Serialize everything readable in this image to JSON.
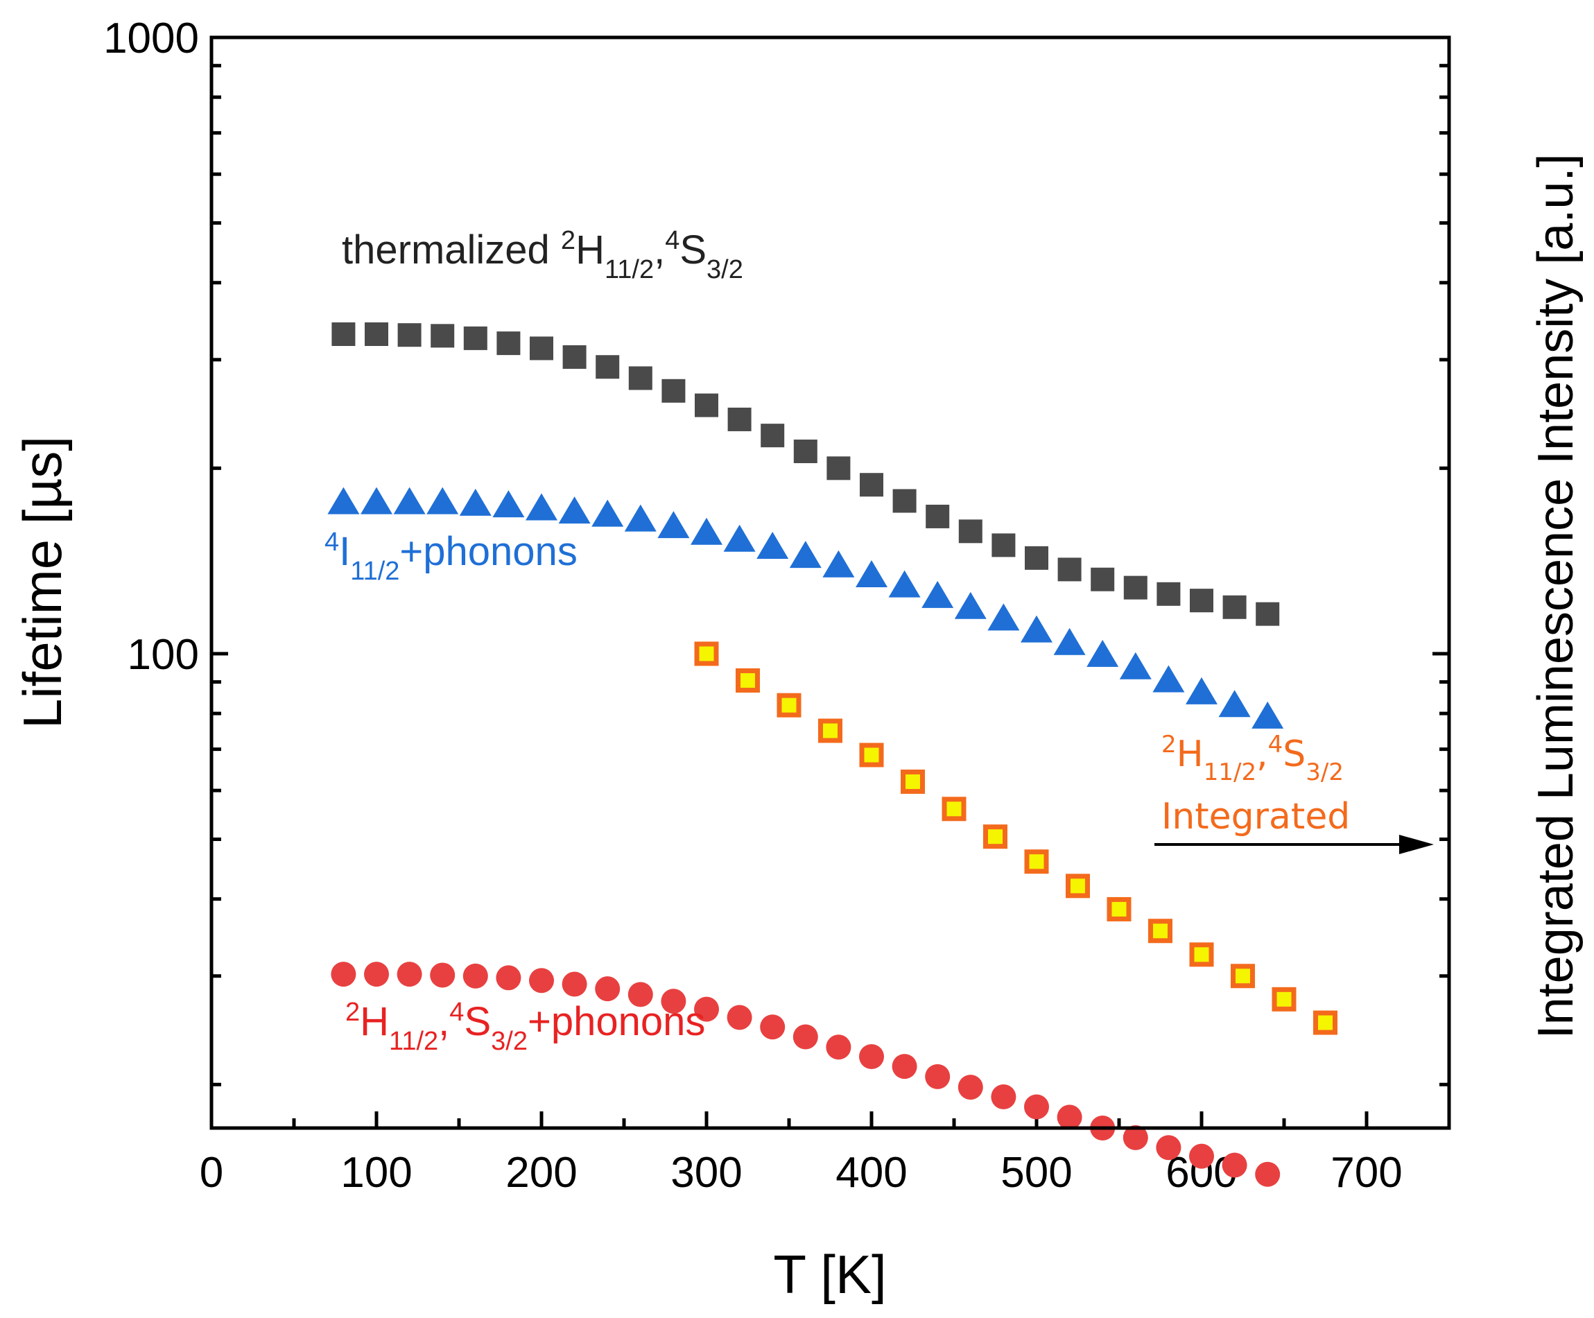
{
  "chart_data": {
    "type": "scatter",
    "xlabel": "T [K]",
    "ylabel_left": "Lifetime [µs]",
    "ylabel_right": "Integrated Luminescence Intensity [a.u.]",
    "xlim": [
      0,
      750
    ],
    "ylim": [
      17,
      1000
    ],
    "yscale": "log",
    "xticks": [
      0,
      100,
      200,
      300,
      400,
      500,
      600,
      700
    ],
    "xtick_labels": [
      "0",
      "100",
      "200",
      "300",
      "400",
      "500",
      "600",
      "700"
    ],
    "yticks": [
      100,
      1000
    ],
    "ytick_labels": [
      "100",
      "1000"
    ],
    "series": [
      {
        "name": "thermalized 2H11/2,4S3/2",
        "marker": "square",
        "color": "#4a4a4a",
        "x": [
          80,
          100,
          120,
          140,
          160,
          180,
          200,
          220,
          240,
          260,
          280,
          300,
          320,
          340,
          360,
          380,
          400,
          420,
          440,
          460,
          480,
          500,
          520,
          540,
          560,
          580,
          600,
          620,
          640
        ],
        "y": [
          330,
          330,
          329,
          328,
          325,
          319,
          313,
          303,
          292,
          280,
          267,
          253,
          240,
          226,
          213,
          200,
          188,
          177,
          167,
          158,
          150,
          143,
          137,
          132,
          128,
          125,
          122,
          119,
          116
        ]
      },
      {
        "name": "4I11/2+phonons",
        "marker": "triangle",
        "color": "#1f6fd6",
        "x": [
          80,
          100,
          120,
          140,
          160,
          180,
          200,
          220,
          240,
          260,
          280,
          300,
          320,
          340,
          360,
          380,
          400,
          420,
          440,
          460,
          480,
          500,
          520,
          540,
          560,
          580,
          600,
          620,
          640
        ],
        "y": [
          176,
          176,
          176,
          176,
          175,
          174,
          172,
          170,
          168,
          165,
          161,
          157,
          153,
          149,
          144,
          139,
          134,
          129,
          124,
          119,
          114,
          109,
          104,
          99.5,
          95,
          90.5,
          86.5,
          82.5,
          79
        ]
      },
      {
        "name": "2H11/2,4S3/2 Integrated",
        "marker": "hollow-square",
        "color": "#f36a1c",
        "fill": "#f5f500",
        "axis": "right",
        "x": [
          300,
          325,
          350,
          375,
          400,
          425,
          450,
          475,
          500,
          525,
          550,
          575,
          600,
          625,
          650,
          675
        ],
        "y": [
          100,
          90.5,
          82.5,
          75,
          68.5,
          62,
          56,
          50.5,
          46,
          42,
          38.5,
          35.5,
          32.5,
          30,
          27.5,
          25.2
        ]
      },
      {
        "name": "2H11/2,4S3/2+phonons",
        "marker": "circle",
        "color": "#e84040",
        "x": [
          80,
          100,
          120,
          140,
          160,
          180,
          200,
          220,
          240,
          260,
          280,
          300,
          320,
          340,
          360,
          380,
          400,
          420,
          440,
          460,
          480,
          500,
          520,
          540,
          560,
          580,
          600,
          620,
          640
        ],
        "y": [
          30.2,
          30.2,
          30.2,
          30.1,
          30,
          29.8,
          29.5,
          29.1,
          28.6,
          28,
          27.3,
          26.5,
          25.7,
          24.8,
          23.9,
          23,
          22.2,
          21.4,
          20.6,
          19.8,
          19.1,
          18.4,
          17.7,
          17,
          16.4,
          15.8,
          15.3,
          14.8,
          14.3
        ]
      }
    ],
    "annotations": {
      "thermalized": {
        "prefix": "thermalized ",
        "sup1": "2",
        "main1": "H",
        "sub1": "11/2",
        "sep": ",",
        "sup2": "4",
        "main2": "S",
        "sub2": "3/2"
      },
      "i112": {
        "sup1": "4",
        "main1": "I",
        "sub1": "11/2",
        "suffix": "+phonons"
      },
      "integrated": {
        "sup1": "2",
        "main1": "H",
        "sub1": "11/2",
        "sep": ",",
        "sup2": "4",
        "main2": "S",
        "sub2": "3/2",
        "line2": "Integrated"
      },
      "h_phonons": {
        "sup1": "2",
        "main1": "H",
        "sub1": "11/2",
        "sep": ",",
        "sup2": "4",
        "main2": "S",
        "sub2": "3/2",
        "suffix": "+phonons"
      }
    }
  }
}
